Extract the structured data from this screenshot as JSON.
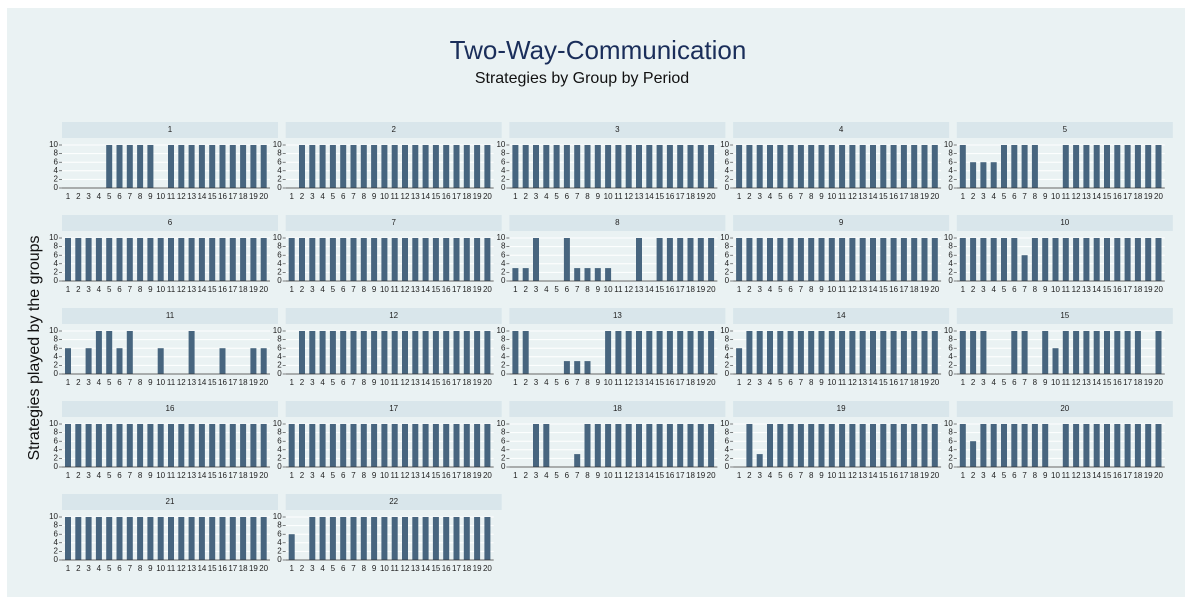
{
  "title": "Two-Way-Communication",
  "subtitle": "Strategies by Group by Period",
  "y_label": "Strategies played by the groups",
  "chart_data": [
    {
      "type": "bar",
      "title": "1",
      "categories": [
        "1",
        "2",
        "3",
        "4",
        "5",
        "6",
        "7",
        "8",
        "9",
        "10",
        "11",
        "12",
        "13",
        "14",
        "15",
        "16",
        "17",
        "18",
        "19",
        "20"
      ],
      "values": [
        0,
        0,
        0,
        0,
        10,
        10,
        10,
        10,
        10,
        0,
        10,
        10,
        10,
        10,
        10,
        10,
        10,
        10,
        10,
        10
      ],
      "color": "#47657f",
      "ylim": [
        0,
        10
      ],
      "yticks": [
        0,
        2,
        4,
        6,
        8,
        10
      ],
      "grid": true
    },
    {
      "type": "bar",
      "title": "2",
      "categories": [
        "1",
        "2",
        "3",
        "4",
        "5",
        "6",
        "7",
        "8",
        "9",
        "10",
        "11",
        "12",
        "13",
        "14",
        "15",
        "16",
        "17",
        "18",
        "19",
        "20"
      ],
      "values": [
        0,
        10,
        10,
        10,
        10,
        10,
        10,
        10,
        10,
        10,
        10,
        10,
        10,
        10,
        10,
        10,
        10,
        10,
        10,
        10
      ],
      "color": "#47657f",
      "ylim": [
        0,
        10
      ],
      "yticks": [
        0,
        2,
        4,
        6,
        8,
        10
      ],
      "grid": true
    },
    {
      "type": "bar",
      "title": "3",
      "categories": [
        "1",
        "2",
        "3",
        "4",
        "5",
        "6",
        "7",
        "8",
        "9",
        "10",
        "11",
        "12",
        "13",
        "14",
        "15",
        "16",
        "17",
        "18",
        "19",
        "20"
      ],
      "values": [
        10,
        10,
        10,
        10,
        10,
        10,
        10,
        10,
        10,
        10,
        10,
        10,
        10,
        10,
        10,
        10,
        10,
        10,
        10,
        10
      ],
      "color": "#47657f",
      "ylim": [
        0,
        10
      ],
      "yticks": [
        0,
        2,
        4,
        6,
        8,
        10
      ],
      "grid": true
    },
    {
      "type": "bar",
      "title": "4",
      "categories": [
        "1",
        "2",
        "3",
        "4",
        "5",
        "6",
        "7",
        "8",
        "9",
        "10",
        "11",
        "12",
        "13",
        "14",
        "15",
        "16",
        "17",
        "18",
        "19",
        "20"
      ],
      "values": [
        10,
        10,
        10,
        10,
        10,
        10,
        10,
        10,
        10,
        10,
        10,
        10,
        10,
        10,
        10,
        10,
        10,
        10,
        10,
        10
      ],
      "color": "#47657f",
      "ylim": [
        0,
        10
      ],
      "yticks": [
        0,
        2,
        4,
        6,
        8,
        10
      ],
      "grid": true
    },
    {
      "type": "bar",
      "title": "5",
      "categories": [
        "1",
        "2",
        "3",
        "4",
        "5",
        "6",
        "7",
        "8",
        "9",
        "10",
        "11",
        "12",
        "13",
        "14",
        "15",
        "16",
        "17",
        "18",
        "19",
        "20"
      ],
      "values": [
        10,
        6,
        6,
        6,
        10,
        10,
        10,
        10,
        0,
        0,
        10,
        10,
        10,
        10,
        10,
        10,
        10,
        10,
        10,
        10
      ],
      "color": "#47657f",
      "ylim": [
        0,
        10
      ],
      "yticks": [
        0,
        2,
        4,
        6,
        8,
        10
      ],
      "grid": true
    },
    {
      "type": "bar",
      "title": "6",
      "categories": [
        "1",
        "2",
        "3",
        "4",
        "5",
        "6",
        "7",
        "8",
        "9",
        "10",
        "11",
        "12",
        "13",
        "14",
        "15",
        "16",
        "17",
        "18",
        "19",
        "20"
      ],
      "values": [
        10,
        10,
        10,
        10,
        10,
        10,
        10,
        10,
        10,
        10,
        10,
        10,
        10,
        10,
        10,
        10,
        10,
        10,
        10,
        10
      ],
      "color": "#47657f",
      "ylim": [
        0,
        10
      ],
      "yticks": [
        0,
        2,
        4,
        6,
        8,
        10
      ],
      "grid": true
    },
    {
      "type": "bar",
      "title": "7",
      "categories": [
        "1",
        "2",
        "3",
        "4",
        "5",
        "6",
        "7",
        "8",
        "9",
        "10",
        "11",
        "12",
        "13",
        "14",
        "15",
        "16",
        "17",
        "18",
        "19",
        "20"
      ],
      "values": [
        10,
        10,
        10,
        10,
        10,
        10,
        10,
        10,
        10,
        10,
        10,
        10,
        10,
        10,
        10,
        10,
        10,
        10,
        10,
        10
      ],
      "color": "#47657f",
      "ylim": [
        0,
        10
      ],
      "yticks": [
        0,
        2,
        4,
        6,
        8,
        10
      ],
      "grid": true
    },
    {
      "type": "bar",
      "title": "8",
      "categories": [
        "1",
        "2",
        "3",
        "4",
        "5",
        "6",
        "7",
        "8",
        "9",
        "10",
        "11",
        "12",
        "13",
        "14",
        "15",
        "16",
        "17",
        "18",
        "19",
        "20"
      ],
      "values": [
        3,
        3,
        10,
        0,
        0,
        10,
        3,
        3,
        3,
        3,
        0,
        0,
        10,
        0,
        10,
        10,
        10,
        10,
        10,
        10
      ],
      "color": "#47657f",
      "ylim": [
        0,
        10
      ],
      "yticks": [
        0,
        2,
        4,
        6,
        8,
        10
      ],
      "grid": true
    },
    {
      "type": "bar",
      "title": "9",
      "categories": [
        "1",
        "2",
        "3",
        "4",
        "5",
        "6",
        "7",
        "8",
        "9",
        "10",
        "11",
        "12",
        "13",
        "14",
        "15",
        "16",
        "17",
        "18",
        "19",
        "20"
      ],
      "values": [
        10,
        10,
        10,
        10,
        10,
        10,
        10,
        10,
        10,
        10,
        10,
        10,
        10,
        10,
        10,
        10,
        10,
        10,
        10,
        10
      ],
      "color": "#47657f",
      "ylim": [
        0,
        10
      ],
      "yticks": [
        0,
        2,
        4,
        6,
        8,
        10
      ],
      "grid": true
    },
    {
      "type": "bar",
      "title": "10",
      "categories": [
        "1",
        "2",
        "3",
        "4",
        "5",
        "6",
        "7",
        "8",
        "9",
        "10",
        "11",
        "12",
        "13",
        "14",
        "15",
        "16",
        "17",
        "18",
        "19",
        "20"
      ],
      "values": [
        10,
        10,
        10,
        10,
        10,
        10,
        6,
        10,
        10,
        10,
        10,
        10,
        10,
        10,
        10,
        10,
        10,
        10,
        10,
        10
      ],
      "color": "#47657f",
      "ylim": [
        0,
        10
      ],
      "yticks": [
        0,
        2,
        4,
        6,
        8,
        10
      ],
      "grid": true
    },
    {
      "type": "bar",
      "title": "11",
      "categories": [
        "1",
        "2",
        "3",
        "4",
        "5",
        "6",
        "7",
        "8",
        "9",
        "10",
        "11",
        "12",
        "13",
        "14",
        "15",
        "16",
        "17",
        "18",
        "19",
        "20"
      ],
      "values": [
        6,
        0,
        6,
        10,
        10,
        6,
        10,
        0,
        0,
        6,
        0,
        0,
        10,
        0,
        0,
        6,
        0,
        0,
        6,
        6
      ],
      "color": "#47657f",
      "ylim": [
        0,
        10
      ],
      "yticks": [
        0,
        2,
        4,
        6,
        8,
        10
      ],
      "grid": true
    },
    {
      "type": "bar",
      "title": "12",
      "categories": [
        "1",
        "2",
        "3",
        "4",
        "5",
        "6",
        "7",
        "8",
        "9",
        "10",
        "11",
        "12",
        "13",
        "14",
        "15",
        "16",
        "17",
        "18",
        "19",
        "20"
      ],
      "values": [
        0,
        10,
        10,
        10,
        10,
        10,
        10,
        10,
        10,
        10,
        10,
        10,
        10,
        10,
        10,
        10,
        10,
        10,
        10,
        10
      ],
      "color": "#47657f",
      "ylim": [
        0,
        10
      ],
      "yticks": [
        0,
        2,
        4,
        6,
        8,
        10
      ],
      "grid": true
    },
    {
      "type": "bar",
      "title": "13",
      "categories": [
        "1",
        "2",
        "3",
        "4",
        "5",
        "6",
        "7",
        "8",
        "9",
        "10",
        "11",
        "12",
        "13",
        "14",
        "15",
        "16",
        "17",
        "18",
        "19",
        "20"
      ],
      "values": [
        10,
        10,
        0,
        0,
        0,
        3,
        3,
        3,
        0,
        10,
        10,
        10,
        10,
        10,
        10,
        10,
        10,
        10,
        10,
        10
      ],
      "color": "#47657f",
      "ylim": [
        0,
        10
      ],
      "yticks": [
        0,
        2,
        4,
        6,
        8,
        10
      ],
      "grid": true
    },
    {
      "type": "bar",
      "title": "14",
      "categories": [
        "1",
        "2",
        "3",
        "4",
        "5",
        "6",
        "7",
        "8",
        "9",
        "10",
        "11",
        "12",
        "13",
        "14",
        "15",
        "16",
        "17",
        "18",
        "19",
        "20"
      ],
      "values": [
        6,
        10,
        10,
        10,
        10,
        10,
        10,
        10,
        10,
        10,
        10,
        10,
        10,
        10,
        10,
        10,
        10,
        10,
        10,
        10
      ],
      "color": "#47657f",
      "ylim": [
        0,
        10
      ],
      "yticks": [
        0,
        2,
        4,
        6,
        8,
        10
      ],
      "grid": true
    },
    {
      "type": "bar",
      "title": "15",
      "categories": [
        "1",
        "2",
        "3",
        "4",
        "5",
        "6",
        "7",
        "8",
        "9",
        "10",
        "11",
        "12",
        "13",
        "14",
        "15",
        "16",
        "17",
        "18",
        "19",
        "20"
      ],
      "values": [
        10,
        10,
        10,
        0,
        0,
        10,
        10,
        0,
        10,
        6,
        10,
        10,
        10,
        10,
        10,
        10,
        10,
        10,
        0,
        10
      ],
      "color": "#47657f",
      "ylim": [
        0,
        10
      ],
      "yticks": [
        0,
        2,
        4,
        6,
        8,
        10
      ],
      "grid": true
    },
    {
      "type": "bar",
      "title": "16",
      "categories": [
        "1",
        "2",
        "3",
        "4",
        "5",
        "6",
        "7",
        "8",
        "9",
        "10",
        "11",
        "12",
        "13",
        "14",
        "15",
        "16",
        "17",
        "18",
        "19",
        "20"
      ],
      "values": [
        10,
        10,
        10,
        10,
        10,
        10,
        10,
        10,
        10,
        10,
        10,
        10,
        10,
        10,
        10,
        10,
        10,
        10,
        10,
        10
      ],
      "color": "#47657f",
      "ylim": [
        0,
        10
      ],
      "yticks": [
        0,
        2,
        4,
        6,
        8,
        10
      ],
      "grid": true
    },
    {
      "type": "bar",
      "title": "17",
      "categories": [
        "1",
        "2",
        "3",
        "4",
        "5",
        "6",
        "7",
        "8",
        "9",
        "10",
        "11",
        "12",
        "13",
        "14",
        "15",
        "16",
        "17",
        "18",
        "19",
        "20"
      ],
      "values": [
        10,
        10,
        10,
        10,
        10,
        10,
        10,
        10,
        10,
        10,
        10,
        10,
        10,
        10,
        10,
        10,
        10,
        10,
        10,
        10
      ],
      "color": "#47657f",
      "ylim": [
        0,
        10
      ],
      "yticks": [
        0,
        2,
        4,
        6,
        8,
        10
      ],
      "grid": true
    },
    {
      "type": "bar",
      "title": "18",
      "categories": [
        "1",
        "2",
        "3",
        "4",
        "5",
        "6",
        "7",
        "8",
        "9",
        "10",
        "11",
        "12",
        "13",
        "14",
        "15",
        "16",
        "17",
        "18",
        "19",
        "20"
      ],
      "values": [
        0,
        0,
        10,
        10,
        0,
        0,
        3,
        10,
        10,
        10,
        10,
        10,
        10,
        10,
        10,
        10,
        10,
        10,
        10,
        10
      ],
      "color": "#47657f",
      "ylim": [
        0,
        10
      ],
      "yticks": [
        0,
        2,
        4,
        6,
        8,
        10
      ],
      "grid": true
    },
    {
      "type": "bar",
      "title": "19",
      "categories": [
        "1",
        "2",
        "3",
        "4",
        "5",
        "6",
        "7",
        "8",
        "9",
        "10",
        "11",
        "12",
        "13",
        "14",
        "15",
        "16",
        "17",
        "18",
        "19",
        "20"
      ],
      "values": [
        0,
        10,
        3,
        10,
        10,
        10,
        10,
        10,
        10,
        10,
        10,
        10,
        10,
        10,
        10,
        10,
        10,
        10,
        10,
        10
      ],
      "color": "#47657f",
      "ylim": [
        0,
        10
      ],
      "yticks": [
        0,
        2,
        4,
        6,
        8,
        10
      ],
      "grid": true
    },
    {
      "type": "bar",
      "title": "20",
      "categories": [
        "1",
        "2",
        "3",
        "4",
        "5",
        "6",
        "7",
        "8",
        "9",
        "10",
        "11",
        "12",
        "13",
        "14",
        "15",
        "16",
        "17",
        "18",
        "19",
        "20"
      ],
      "values": [
        10,
        6,
        10,
        10,
        10,
        10,
        10,
        10,
        10,
        0,
        10,
        10,
        10,
        10,
        10,
        10,
        10,
        10,
        10,
        10
      ],
      "color": "#47657f",
      "ylim": [
        0,
        10
      ],
      "yticks": [
        0,
        2,
        4,
        6,
        8,
        10
      ],
      "grid": true
    },
    {
      "type": "bar",
      "title": "21",
      "categories": [
        "1",
        "2",
        "3",
        "4",
        "5",
        "6",
        "7",
        "8",
        "9",
        "10",
        "11",
        "12",
        "13",
        "14",
        "15",
        "16",
        "17",
        "18",
        "19",
        "20"
      ],
      "values": [
        10,
        10,
        10,
        10,
        10,
        10,
        10,
        10,
        10,
        10,
        10,
        10,
        10,
        10,
        10,
        10,
        10,
        10,
        10,
        10
      ],
      "color": "#47657f",
      "ylim": [
        0,
        10
      ],
      "yticks": [
        0,
        2,
        4,
        6,
        8,
        10
      ],
      "grid": true
    },
    {
      "type": "bar",
      "title": "22",
      "categories": [
        "1",
        "2",
        "3",
        "4",
        "5",
        "6",
        "7",
        "8",
        "9",
        "10",
        "11",
        "12",
        "13",
        "14",
        "15",
        "16",
        "17",
        "18",
        "19",
        "20"
      ],
      "values": [
        6,
        0,
        10,
        10,
        10,
        10,
        10,
        10,
        10,
        10,
        10,
        10,
        10,
        10,
        10,
        10,
        10,
        10,
        10,
        10
      ],
      "color": "#47657f",
      "ylim": [
        0,
        10
      ],
      "yticks": [
        0,
        2,
        4,
        6,
        8,
        10
      ],
      "grid": true
    }
  ]
}
